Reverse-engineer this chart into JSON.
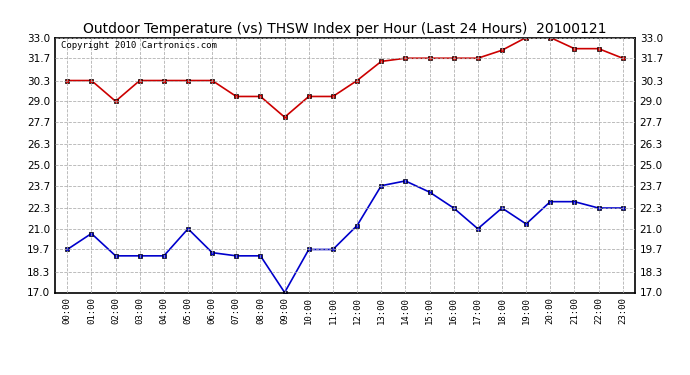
{
  "title": "Outdoor Temperature (vs) THSW Index per Hour (Last 24 Hours)  20100121",
  "copyright": "Copyright 2010 Cartronics.com",
  "hours": [
    "00:00",
    "01:00",
    "02:00",
    "03:00",
    "04:00",
    "05:00",
    "06:00",
    "07:00",
    "08:00",
    "09:00",
    "10:00",
    "11:00",
    "12:00",
    "13:00",
    "14:00",
    "15:00",
    "16:00",
    "17:00",
    "18:00",
    "19:00",
    "20:00",
    "21:00",
    "22:00",
    "23:00"
  ],
  "red_data": [
    30.3,
    30.3,
    29.0,
    30.3,
    30.3,
    30.3,
    30.3,
    29.3,
    29.3,
    28.0,
    29.3,
    29.3,
    30.3,
    31.5,
    31.7,
    31.7,
    31.7,
    31.7,
    32.2,
    33.0,
    33.0,
    32.3,
    32.3,
    31.7
  ],
  "blue_data": [
    19.7,
    20.7,
    19.3,
    19.3,
    19.3,
    21.0,
    19.5,
    19.3,
    19.3,
    17.0,
    19.7,
    19.7,
    21.2,
    23.7,
    24.0,
    23.3,
    22.3,
    21.0,
    22.3,
    21.3,
    22.7,
    22.7,
    22.3,
    22.3
  ],
  "ylim": [
    17.0,
    33.0
  ],
  "yticks": [
    17.0,
    18.3,
    19.7,
    21.0,
    22.3,
    23.7,
    25.0,
    26.3,
    27.7,
    29.0,
    30.3,
    31.7,
    33.0
  ],
  "red_color": "#cc0000",
  "blue_color": "#0000cc",
  "bg_color": "#ffffff",
  "grid_color": "#aaaaaa",
  "title_fontsize": 10,
  "copyright_fontsize": 6.5
}
